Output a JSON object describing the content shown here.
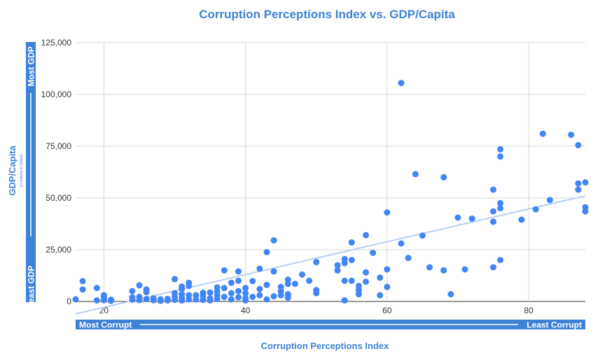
{
  "chart_data": {
    "type": "scatter",
    "title": "Corruption Perceptions Index vs. GDP/Capita",
    "xlabel": "Corruption Perceptions Index",
    "ylabel": "GDP/Capita",
    "ylabel_sub": "(in millions of dollars)",
    "xlim": [
      16,
      88
    ],
    "ylim": [
      0,
      125000
    ],
    "x_ticks": [
      20,
      40,
      60,
      80
    ],
    "y_ticks": [
      0,
      25000,
      50000,
      75000,
      100000,
      125000
    ],
    "x_tick_labels": [
      "20",
      "40",
      "60",
      "80"
    ],
    "y_tick_labels": [
      "0",
      "25,000",
      "50,000",
      "75,000",
      "100,000",
      "125,000"
    ],
    "grid": true,
    "x_band": {
      "left": "Most Corrupt",
      "right": "Least Corrupt"
    },
    "y_band": {
      "bottom": "Least GDP",
      "top": "Most GDP"
    },
    "colors": {
      "accent": "#3d82d6",
      "points": "#4285f4",
      "trendline": "#b6cff2",
      "grid": "#d9d9d9"
    },
    "trendline": {
      "x": [
        16,
        88
      ],
      "y": [
        -6000,
        51000
      ]
    },
    "points": [
      [
        16,
        1000
      ],
      [
        17,
        9800
      ],
      [
        17,
        5800
      ],
      [
        19,
        6500
      ],
      [
        19,
        500
      ],
      [
        20,
        3000
      ],
      [
        20,
        1800
      ],
      [
        20,
        600
      ],
      [
        21,
        800
      ],
      [
        21,
        300
      ],
      [
        24,
        5000
      ],
      [
        24,
        2000
      ],
      [
        24,
        900
      ],
      [
        25,
        7800
      ],
      [
        25,
        2200
      ],
      [
        25,
        700
      ],
      [
        26,
        5800
      ],
      [
        26,
        4500
      ],
      [
        26,
        1200
      ],
      [
        27,
        1500
      ],
      [
        27,
        600
      ],
      [
        28,
        1000
      ],
      [
        28,
        300
      ],
      [
        29,
        1200
      ],
      [
        29,
        500
      ],
      [
        30,
        10800
      ],
      [
        30,
        4000
      ],
      [
        30,
        2200
      ],
      [
        30,
        800
      ],
      [
        31,
        7200
      ],
      [
        31,
        6000
      ],
      [
        31,
        3500
      ],
      [
        31,
        1800
      ],
      [
        31,
        500
      ],
      [
        32,
        9000
      ],
      [
        32,
        7500
      ],
      [
        32,
        3000
      ],
      [
        32,
        1000
      ],
      [
        33,
        3000
      ],
      [
        33,
        1000
      ],
      [
        34,
        4200
      ],
      [
        34,
        2500
      ],
      [
        34,
        800
      ],
      [
        35,
        4300
      ],
      [
        35,
        1500
      ],
      [
        35,
        500
      ],
      [
        36,
        6800
      ],
      [
        36,
        4800
      ],
      [
        36,
        3000
      ],
      [
        36,
        1200
      ],
      [
        37,
        15000
      ],
      [
        37,
        6500
      ],
      [
        37,
        2200
      ],
      [
        38,
        9000
      ],
      [
        38,
        4000
      ],
      [
        38,
        1000
      ],
      [
        39,
        14500
      ],
      [
        39,
        10000
      ],
      [
        39,
        5000
      ],
      [
        39,
        2000
      ],
      [
        40,
        6500
      ],
      [
        40,
        4000
      ],
      [
        40,
        1500
      ],
      [
        40,
        500
      ],
      [
        41,
        9800
      ],
      [
        41,
        2200
      ],
      [
        42,
        15800
      ],
      [
        42,
        6000
      ],
      [
        42,
        3000
      ],
      [
        43,
        23800
      ],
      [
        43,
        8000
      ],
      [
        43,
        1000
      ],
      [
        44,
        29500
      ],
      [
        44,
        14500
      ],
      [
        44,
        2500
      ],
      [
        45,
        7000
      ],
      [
        45,
        5000
      ],
      [
        45,
        3000
      ],
      [
        46,
        10500
      ],
      [
        46,
        8500
      ],
      [
        46,
        3500
      ],
      [
        46,
        1800
      ],
      [
        47,
        8500
      ],
      [
        48,
        13000
      ],
      [
        49,
        10000
      ],
      [
        50,
        19000
      ],
      [
        50,
        5500
      ],
      [
        50,
        4000
      ],
      [
        53,
        17500
      ],
      [
        53,
        15000
      ],
      [
        54,
        20500
      ],
      [
        54,
        18500
      ],
      [
        54,
        10000
      ],
      [
        54,
        500
      ],
      [
        55,
        28500
      ],
      [
        55,
        20000
      ],
      [
        55,
        10000
      ],
      [
        56,
        7500
      ],
      [
        56,
        5500
      ],
      [
        56,
        3500
      ],
      [
        57,
        32000
      ],
      [
        57,
        14000
      ],
      [
        57,
        9500
      ],
      [
        58,
        23500
      ],
      [
        59,
        11500
      ],
      [
        59,
        3000
      ],
      [
        60,
        43000
      ],
      [
        60,
        15500
      ],
      [
        60,
        7000
      ],
      [
        62,
        105500
      ],
      [
        62,
        28000
      ],
      [
        63,
        21000
      ],
      [
        64,
        61500
      ],
      [
        65,
        31800
      ],
      [
        66,
        16500
      ],
      [
        68,
        60000
      ],
      [
        68,
        15000
      ],
      [
        69,
        3500
      ],
      [
        70,
        40500
      ],
      [
        71,
        15500
      ],
      [
        72,
        40000
      ],
      [
        75,
        54000
      ],
      [
        75,
        43500
      ],
      [
        75,
        38500
      ],
      [
        75,
        16500
      ],
      [
        76,
        73500
      ],
      [
        76,
        70000
      ],
      [
        76,
        47500
      ],
      [
        76,
        45000
      ],
      [
        76,
        20000
      ],
      [
        79,
        39500
      ],
      [
        81,
        44500
      ],
      [
        82,
        81000
      ],
      [
        83,
        49000
      ],
      [
        86,
        80500
      ],
      [
        87,
        75500
      ],
      [
        87,
        57000
      ],
      [
        87,
        54000
      ],
      [
        90,
        57500
      ],
      [
        90,
        45500
      ],
      [
        90,
        43500
      ]
    ]
  }
}
